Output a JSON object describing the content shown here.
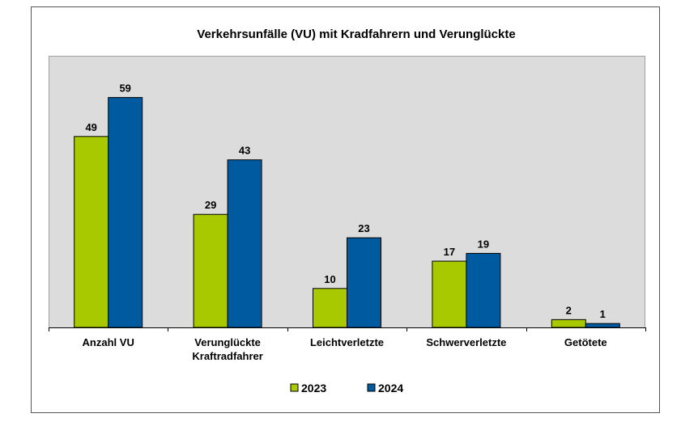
{
  "chart_data": {
    "type": "bar",
    "title": "Verkehrsunfälle (VU) mit Kradfahrern und Verunglückte",
    "categories": [
      [
        "Anzahl VU"
      ],
      [
        "Verunglückte",
        "Kraftradfahrer"
      ],
      [
        "Leichtverletzte"
      ],
      [
        "Schwerverletzte"
      ],
      [
        "Getötete"
      ]
    ],
    "series": [
      {
        "name": "2023",
        "color": "#a8c800",
        "values": [
          49,
          29,
          10,
          17,
          2
        ]
      },
      {
        "name": "2024",
        "color": "#005aa0",
        "values": [
          59,
          43,
          23,
          19,
          1
        ]
      }
    ],
    "xlabel": "",
    "ylabel": "",
    "ylim": [
      0,
      66
    ],
    "grid": false,
    "legend": "bottom",
    "plot_background": "#dcdcdc",
    "data_labels": true
  }
}
